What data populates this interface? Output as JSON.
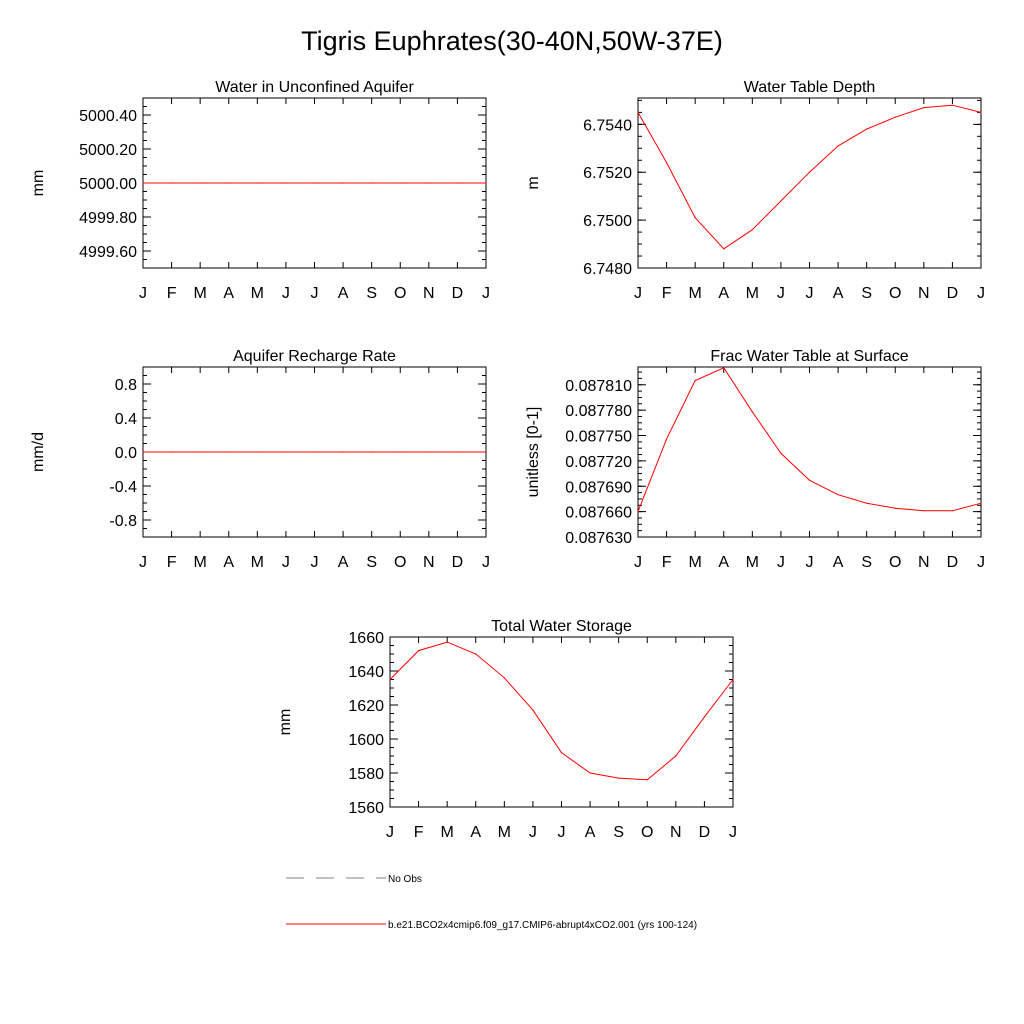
{
  "title": "Tigris Euphrates(30-40N,50W-37E)",
  "months": [
    "J",
    "F",
    "M",
    "A",
    "M",
    "J",
    "J",
    "A",
    "S",
    "O",
    "N",
    "D",
    "J"
  ],
  "colors": {
    "model": "#ff0000",
    "obs": "#808080",
    "axis": "#000000"
  },
  "chart_data": [
    {
      "id": "water-unconfined-aquifer",
      "type": "line",
      "title": "Water in Unconfined Aquifer",
      "ylabel": "mm",
      "ylim": [
        4999.5,
        5000.5
      ],
      "yticks": [
        4999.6,
        4999.8,
        5000.0,
        5000.2,
        5000.4
      ],
      "ytick_labels": [
        "4999.60",
        "4999.80",
        "5000.00",
        "5000.20",
        "5000.40"
      ],
      "values": [
        5000,
        5000,
        5000,
        5000,
        5000,
        5000,
        5000,
        5000,
        5000,
        5000,
        5000,
        5000,
        5000
      ]
    },
    {
      "id": "water-table-depth",
      "type": "line",
      "title": "Water Table Depth",
      "ylabel": "m",
      "ylim": [
        6.748,
        6.7551
      ],
      "yticks": [
        6.748,
        6.75,
        6.752,
        6.754
      ],
      "ytick_labels": [
        "6.7480",
        "6.7500",
        "6.7520",
        "6.7540"
      ],
      "values": [
        6.7545,
        6.7524,
        6.7501,
        6.7488,
        6.7496,
        6.7508,
        6.752,
        6.7531,
        6.7538,
        6.7543,
        6.7547,
        6.7548,
        6.7545
      ]
    },
    {
      "id": "aquifer-recharge-rate",
      "type": "line",
      "title": "Aquifer Recharge Rate",
      "ylabel": "mm/d",
      "ylim": [
        -1.0,
        1.0
      ],
      "yticks": [
        -0.8,
        -0.4,
        0.0,
        0.4,
        0.8
      ],
      "ytick_labels": [
        "-0.8",
        "-0.4",
        "0.0",
        "0.4",
        "0.8"
      ],
      "values": [
        0,
        0,
        0,
        0,
        0,
        0,
        0,
        0,
        0,
        0,
        0,
        0,
        0
      ]
    },
    {
      "id": "frac-water-table-surface",
      "type": "line",
      "title": "Frac Water Table at Surface",
      "ylabel": "unitless [0-1]",
      "ylim": [
        0.08763,
        0.087831
      ],
      "yticks": [
        0.08763,
        0.08766,
        0.08769,
        0.08772,
        0.08775,
        0.08778,
        0.08781
      ],
      "ytick_labels": [
        "0.087630",
        "0.087660",
        "0.087690",
        "0.087720",
        "0.087750",
        "0.087780",
        "0.087810"
      ],
      "values": [
        0.08766,
        0.087746,
        0.087815,
        0.08783,
        0.087778,
        0.087729,
        0.087697,
        0.08768,
        0.08767,
        0.087664,
        0.087661,
        0.087661,
        0.08767
      ]
    },
    {
      "id": "total-water-storage",
      "type": "line",
      "title": "Total Water Storage",
      "ylabel": "mm",
      "ylim": [
        1560,
        1660
      ],
      "yticks": [
        1560,
        1580,
        1600,
        1620,
        1640,
        1660
      ],
      "ytick_labels": [
        "1560",
        "1580",
        "1600",
        "1620",
        "1640",
        "1660"
      ],
      "values": [
        1635,
        1652,
        1657,
        1650,
        1636,
        1617,
        1592,
        1580,
        1577,
        1576,
        1590,
        1613,
        1635
      ]
    }
  ],
  "legend": [
    {
      "label": "No Obs",
      "style": "dashed",
      "color": "#808080"
    },
    {
      "label": "b.e21.BCO2x4cmip6.f09_g17.CMIP6-abrupt4xCO2.001 (yrs 100-124)",
      "style": "solid",
      "color": "#ff0000"
    }
  ]
}
